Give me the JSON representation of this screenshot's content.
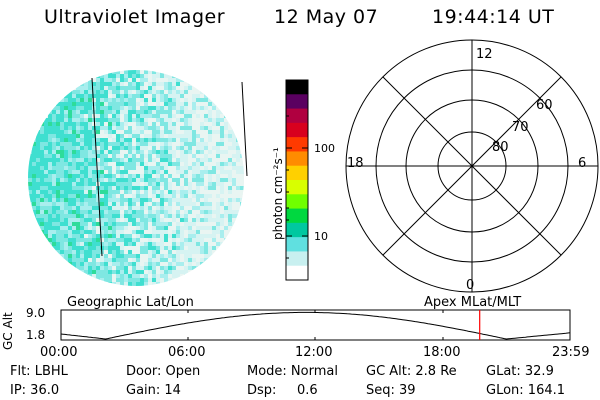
{
  "header": {
    "instrument": "Ultraviolet Imager",
    "date": "12 May 07",
    "time": "19:44:14 UT"
  },
  "colorbar": {
    "unit_label": "photon cm⁻²s⁻¹",
    "ticks": [
      "100",
      "10"
    ],
    "colors": [
      "#000000",
      "#5a0060",
      "#b00040",
      "#d8001e",
      "#ff3a00",
      "#ff8c00",
      "#ffd000",
      "#d8ff00",
      "#70ff00",
      "#00d840",
      "#00c8a0",
      "#60e0e0",
      "#c8f0f0",
      "#ffffff"
    ]
  },
  "image": {
    "fill_colors": [
      "#3fdfd0",
      "#7fe7e2",
      "#a9eeee",
      "#d6f3f2",
      "#e9f5f2",
      "#2edc9a"
    ]
  },
  "polar": {
    "mlt_labels": {
      "top": "12",
      "right": "6",
      "left": "18",
      "bottom": "0"
    },
    "lat_labels": [
      "60",
      "70",
      "80"
    ]
  },
  "timeline": {
    "left_title": "Geographic Lat/Lon",
    "right_title": "Apex MLat/MLT",
    "y_axis_label": "GC Alt",
    "y_ticks": [
      "9.0",
      "1.8"
    ],
    "x_ticks": [
      "00:00",
      "06:00",
      "12:00",
      "18:00",
      "23:59"
    ],
    "current_marker_hours": 19.74,
    "marker_color": "#ff0000"
  },
  "status": {
    "flt": "Flt: LBHL",
    "ip": "IP: 36.0",
    "door": "Door: Open",
    "gain": "Gain: 14",
    "mode": "Mode: Normal",
    "dsp_label": "Dsp:",
    "dsp_value": "0.6",
    "gc_alt": "GC Alt: 2.8 Re",
    "seq": "Seq: 39",
    "glat": "GLat: 32.9",
    "glon": "GLon: 164.1"
  }
}
